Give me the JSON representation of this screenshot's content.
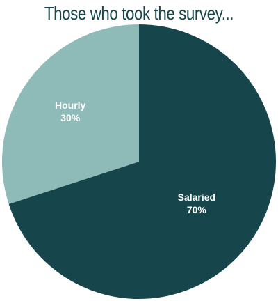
{
  "chart_data": {
    "type": "pie",
    "title": "Those who took the survey...",
    "slices": [
      {
        "label": "Salaried",
        "value": 70,
        "display": "70%",
        "color": "#17454c"
      },
      {
        "label": "Hourly",
        "value": 30,
        "display": "30%",
        "color": "#8ebab8"
      }
    ],
    "start_angle_deg": 0,
    "direction": "clockwise"
  },
  "colors": {
    "title": "#17454c",
    "label_text": "#ffffff"
  }
}
